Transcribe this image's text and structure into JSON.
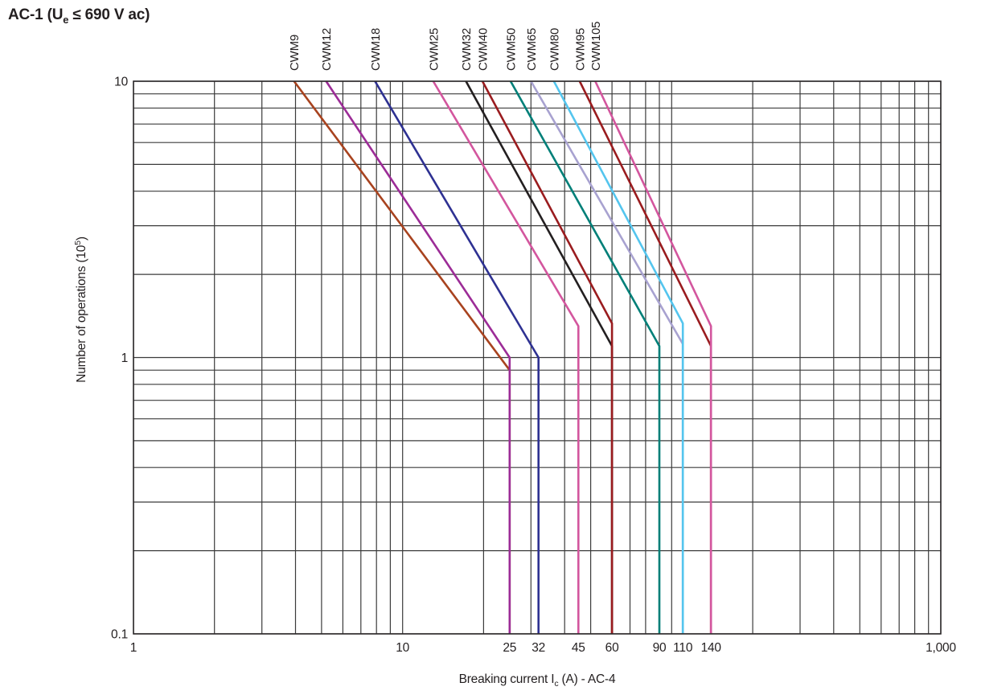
{
  "title": {
    "prefix": "AC-1 (U",
    "sub": "e",
    "suffix": " ≤ 690 V ac)"
  },
  "chart_data": {
    "type": "line",
    "x_scale": "log",
    "y_scale": "log",
    "xlim": [
      1,
      1000
    ],
    "ylim": [
      0.1,
      10
    ],
    "grid": {
      "color": "#3b3b3b",
      "full_log_grid": true
    },
    "border_color": "#2e2b2c",
    "x_axis_label": {
      "prefix": "Breaking current I",
      "sub": "c",
      "suffix": " (A) - AC-4"
    },
    "y_axis_label": {
      "prefix": "Number of operations (10",
      "sup": "5",
      "suffix": ")"
    },
    "x_ticks": [
      {
        "value": 1,
        "label": "1"
      },
      {
        "value": 10,
        "label": "10"
      },
      {
        "value": 25,
        "label": "25"
      },
      {
        "value": 32,
        "label": "32"
      },
      {
        "value": 45,
        "label": "45"
      },
      {
        "value": 60,
        "label": "60"
      },
      {
        "value": 90,
        "label": "90"
      },
      {
        "value": 110,
        "label": "110"
      },
      {
        "value": 140,
        "label": "140"
      },
      {
        "value": 1000,
        "label": "1,000"
      }
    ],
    "y_ticks": [
      {
        "value": 10,
        "label": "10"
      },
      {
        "value": 1,
        "label": "1"
      },
      {
        "value": 0.1,
        "label": "0.1"
      }
    ],
    "series": [
      {
        "name": "CWM9",
        "color": "#a8431f",
        "rated_current": 25,
        "points": [
          [
            3.95,
            10
          ],
          [
            25,
            0.9
          ],
          [
            25,
            0.1
          ]
        ]
      },
      {
        "name": "CWM12",
        "color": "#9c2c97",
        "rated_current": 25,
        "points": [
          [
            5.2,
            10
          ],
          [
            25,
            1.0
          ],
          [
            25,
            0.1
          ]
        ]
      },
      {
        "name": "CWM18",
        "color": "#2e3192",
        "rated_current": 32,
        "points": [
          [
            7.9,
            10
          ],
          [
            32,
            1.0
          ],
          [
            32,
            0.1
          ]
        ]
      },
      {
        "name": "CWM25",
        "color": "#d3569e",
        "rated_current": 45,
        "points": [
          [
            13,
            10
          ],
          [
            45,
            1.3
          ],
          [
            45,
            0.1
          ]
        ]
      },
      {
        "name": "CWM32",
        "color": "#231f20",
        "rated_current": 60,
        "points": [
          [
            17.2,
            10
          ],
          [
            60,
            1.1
          ],
          [
            60,
            0.1
          ]
        ]
      },
      {
        "name": "CWM40",
        "color": "#9a1c1f",
        "rated_current": 60,
        "points": [
          [
            19.8,
            10
          ],
          [
            60,
            1.33
          ],
          [
            60,
            0.1
          ]
        ]
      },
      {
        "name": "CWM50",
        "color": "#007f78",
        "rated_current": 90,
        "points": [
          [
            25.2,
            10
          ],
          [
            90,
            1.1
          ],
          [
            90,
            0.1
          ]
        ]
      },
      {
        "name": "CWM65",
        "color": "#a8a2d0",
        "rated_current": 110,
        "points": [
          [
            30,
            10
          ],
          [
            110,
            1.12
          ],
          [
            110,
            0.1
          ]
        ]
      },
      {
        "name": "CWM80",
        "color": "#54c5ee",
        "rated_current": 110,
        "points": [
          [
            36.5,
            10
          ],
          [
            110,
            1.33
          ],
          [
            110,
            0.1
          ]
        ]
      },
      {
        "name": "CWM95",
        "color": "#9a1c1f",
        "rated_current": 140,
        "points": [
          [
            45.5,
            10
          ],
          [
            140,
            1.1
          ],
          [
            140,
            0.1
          ]
        ]
      },
      {
        "name": "CWM105",
        "color": "#d3569e",
        "rated_current": 140,
        "points": [
          [
            52,
            10
          ],
          [
            140,
            1.3
          ],
          [
            140,
            0.1
          ]
        ]
      }
    ]
  }
}
